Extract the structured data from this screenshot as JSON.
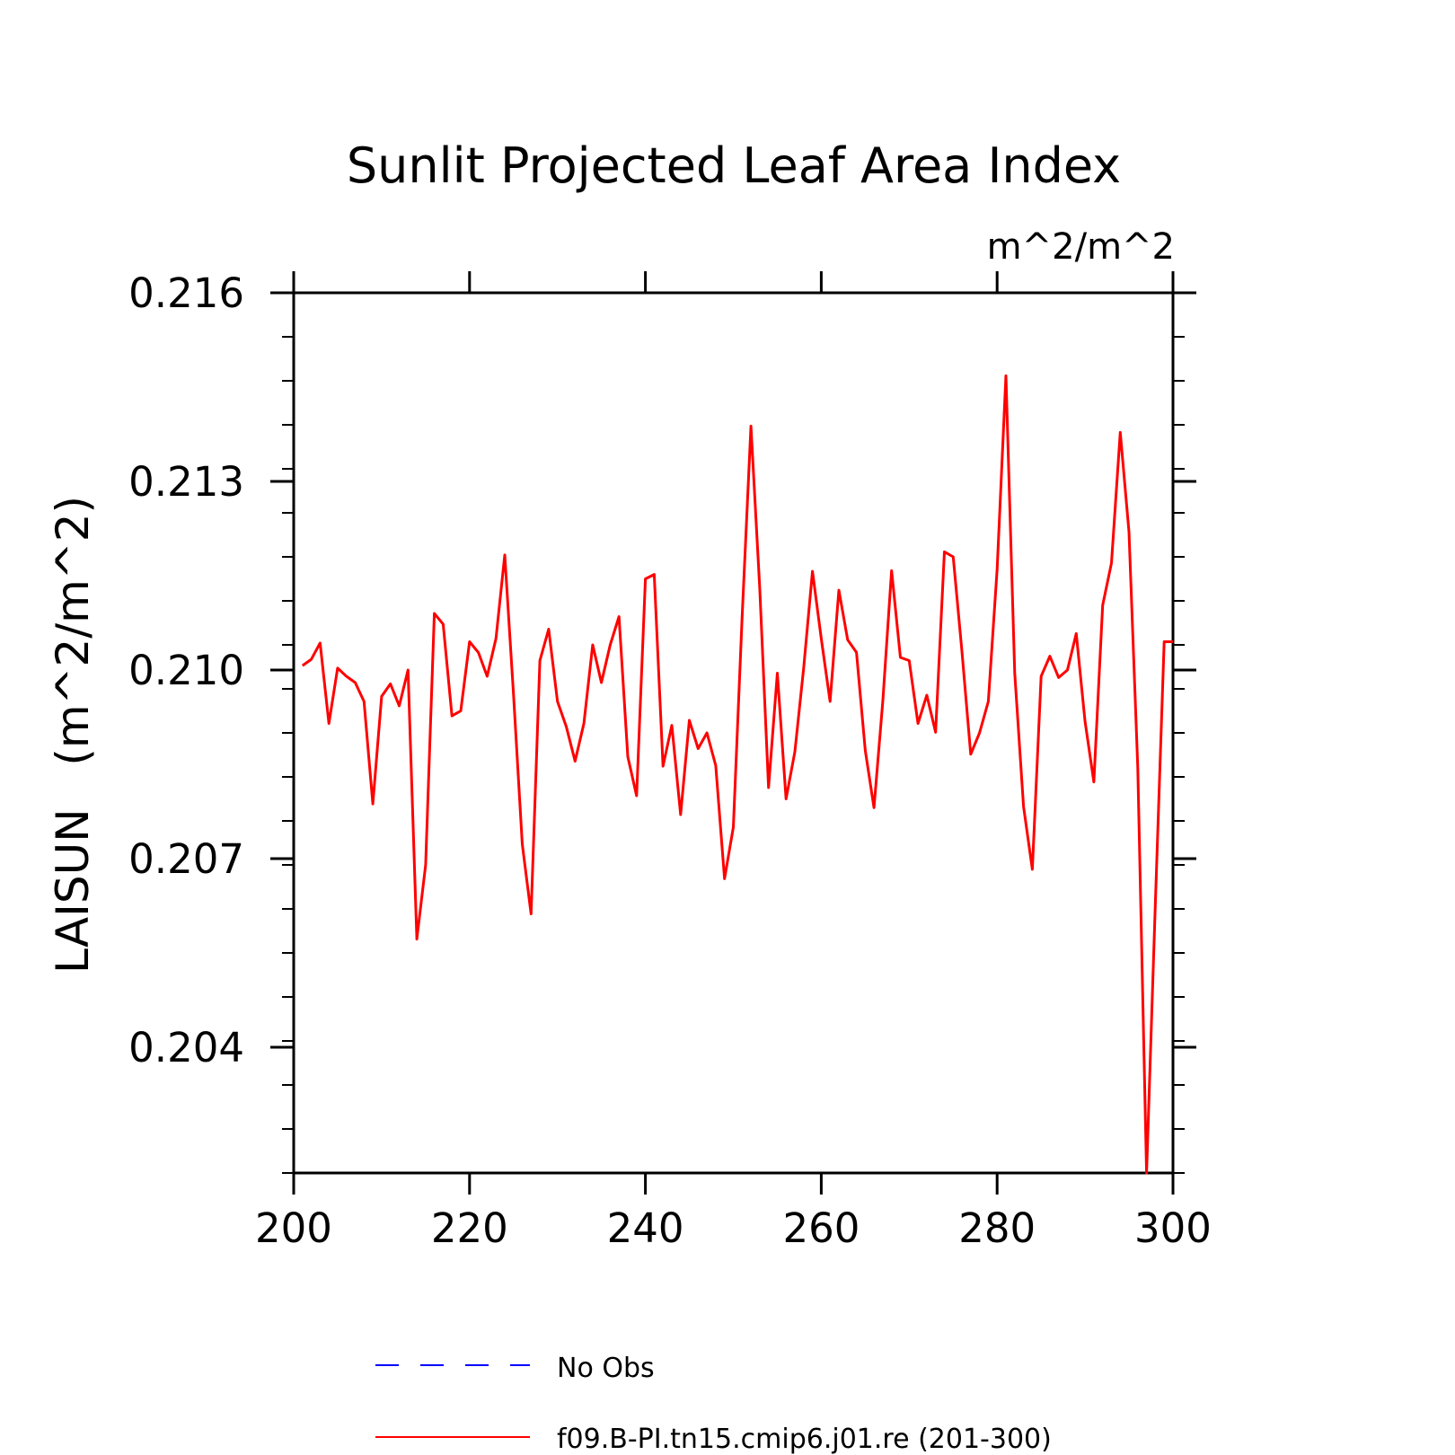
{
  "chart_data": {
    "type": "line",
    "title": "Sunlit Projected Leaf Area Index",
    "units": "m^2/m^2",
    "ylabel": "LAISUN   (m^2/m^2)",
    "xlabel": "",
    "xlim": [
      200,
      300
    ],
    "ylim": [
      0.202,
      0.216
    ],
    "xticks": [
      200,
      220,
      240,
      260,
      280,
      300
    ],
    "xtick_labels": [
      "200",
      "220",
      "240",
      "260",
      "280",
      "300"
    ],
    "yticks": [
      0.204,
      0.207,
      0.21,
      0.213,
      0.216
    ],
    "ytick_labels": [
      "0.204",
      "0.207",
      "0.210",
      "0.213",
      "0.216"
    ],
    "grid": false,
    "legend_position": "bottom",
    "legend": [
      {
        "label": "No Obs",
        "color": "#0000ff",
        "style": "dashed"
      },
      {
        "label": "f09.B-PI.tn15.cmip6.j01.re (201-300)",
        "color": "#ff0000",
        "style": "solid"
      }
    ],
    "series": [
      {
        "name": "f09.B-PI.tn15.cmip6.j01.re (201-300)",
        "color": "#ff0000",
        "x": [
          201,
          202,
          203,
          204,
          205,
          206,
          207,
          208,
          209,
          210,
          211,
          212,
          213,
          214,
          215,
          216,
          217,
          218,
          219,
          220,
          221,
          222,
          223,
          224,
          225,
          226,
          227,
          228,
          229,
          230,
          231,
          232,
          233,
          234,
          235,
          236,
          237,
          238,
          239,
          240,
          241,
          242,
          243,
          244,
          245,
          246,
          247,
          248,
          249,
          250,
          251,
          252,
          253,
          254,
          255,
          256,
          257,
          258,
          259,
          260,
          261,
          262,
          263,
          264,
          265,
          266,
          267,
          268,
          269,
          270,
          271,
          272,
          273,
          274,
          275,
          276,
          277,
          278,
          279,
          280,
          281,
          282,
          283,
          284,
          285,
          286,
          287,
          288,
          289,
          290,
          291,
          292,
          293,
          294,
          295,
          296,
          297,
          298,
          299,
          300
        ],
        "values": [
          0.21007,
          0.21017,
          0.21043,
          0.20915,
          0.21003,
          0.2099,
          0.2098,
          0.2095,
          0.20787,
          0.20958,
          0.20978,
          0.20943,
          0.21,
          0.20572,
          0.2069,
          0.2109,
          0.21073,
          0.20927,
          0.20935,
          0.21045,
          0.21028,
          0.2099,
          0.2105,
          0.21183,
          0.2096,
          0.20723,
          0.20612,
          0.21015,
          0.21065,
          0.2095,
          0.2091,
          0.20855,
          0.20915,
          0.2104,
          0.2098,
          0.2104,
          0.21085,
          0.20862,
          0.208,
          0.21145,
          0.21152,
          0.20847,
          0.20912,
          0.2077,
          0.2092,
          0.20875,
          0.209,
          0.20848,
          0.20668,
          0.2075,
          0.21085,
          0.21388,
          0.2113,
          0.20813,
          0.20995,
          0.20795,
          0.2087,
          0.21003,
          0.21157,
          0.2105,
          0.2095,
          0.21127,
          0.21048,
          0.21028,
          0.20872,
          0.20781,
          0.2095,
          0.21158,
          0.2102,
          0.21015,
          0.20915,
          0.2096,
          0.20901,
          0.21188,
          0.2118,
          0.2103,
          0.20866,
          0.209,
          0.2095,
          0.2116,
          0.21468,
          0.20995,
          0.20783,
          0.20683,
          0.2099,
          0.21022,
          0.20988,
          0.21,
          0.21058,
          0.20918,
          0.20822,
          0.21103,
          0.2117,
          0.21378,
          0.2122,
          0.20845,
          0.202,
          0.2063,
          0.21045,
          0.21045
        ]
      }
    ]
  }
}
